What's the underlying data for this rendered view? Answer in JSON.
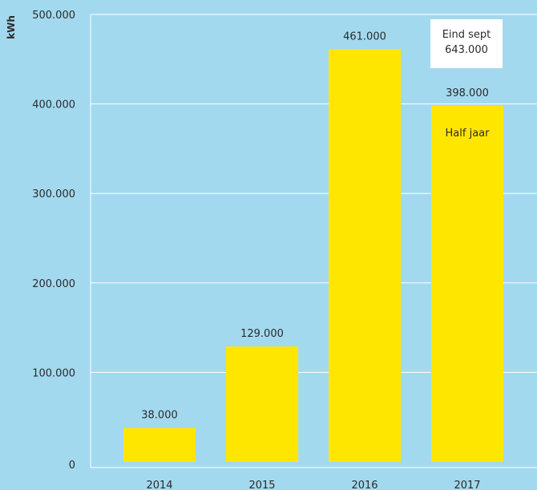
{
  "chart_data": {
    "type": "bar",
    "ylabel": "kWh",
    "xlabel": "",
    "title": "",
    "categories": [
      "2014",
      "2015",
      "2016",
      "2017"
    ],
    "values": [
      38000,
      129000,
      461000,
      398000
    ],
    "value_labels": [
      "38.000",
      "129.000",
      "461.000",
      "398.000"
    ],
    "ylim": [
      0,
      500000
    ],
    "yticks": [
      0,
      100000,
      200000,
      300000,
      400000,
      500000
    ],
    "ytick_labels": [
      "0",
      "100.000",
      "200.000",
      "300.000",
      "400.000",
      "500.000"
    ],
    "grid": true,
    "bar_color": "#ffe600",
    "background_color": "#a3d9ef",
    "grid_color": "#ffffff",
    "annotations": {
      "bar_note": {
        "category": "2017",
        "text": "Half jaar"
      },
      "callout": {
        "lines": [
          "Eind sept",
          "643.000"
        ]
      }
    }
  }
}
